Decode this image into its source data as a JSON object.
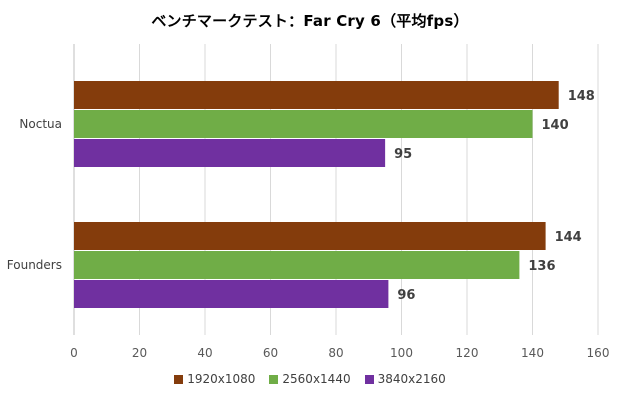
{
  "chart_data": {
    "type": "bar",
    "orientation": "horizontal",
    "title": "ベンチマークテスト：Far Cry 6（平均fps）",
    "categories": [
      "Noctua",
      "Founders"
    ],
    "series": [
      {
        "name": "1920x1080",
        "color": "#843c0c",
        "values": [
          148,
          144
        ]
      },
      {
        "name": "2560x1440",
        "color": "#70ad47",
        "values": [
          140,
          136
        ]
      },
      {
        "name": "3840x2160",
        "color": "#7030a0",
        "values": [
          95,
          96
        ]
      }
    ],
    "xlim": [
      0,
      160
    ],
    "x_ticks": [
      0,
      20,
      40,
      60,
      80,
      100,
      120,
      140,
      160
    ],
    "xlabel": "",
    "ylabel": "",
    "grid": "vertical",
    "legend_position": "bottom",
    "data_labels": true
  }
}
